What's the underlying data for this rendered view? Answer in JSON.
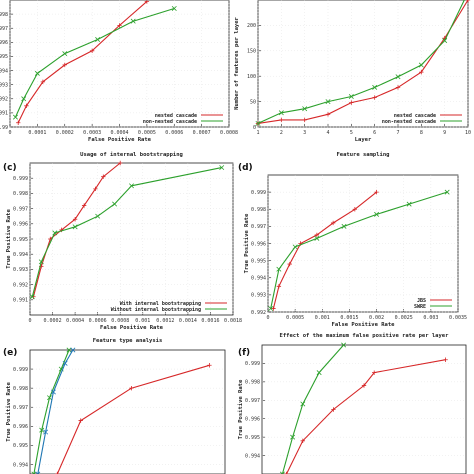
{
  "chart_data": [
    {
      "panel_label": "",
      "type": "line",
      "title": "",
      "xlabel": "False Positive Rate",
      "ylabel": "True Positive Rate",
      "xlim": [
        0,
        0.0008
      ],
      "ylim": [
        0.99,
        0.999
      ],
      "xticks": [
        "0",
        "0.0001",
        "0.0002",
        "0.0003",
        "0.0004",
        "0.0005",
        "0.0006",
        "0.0007",
        "0.0008"
      ],
      "yticks": [
        "0.99",
        "0.991",
        "0.992",
        "0.993",
        "0.994",
        "0.995",
        "0.996",
        "0.997",
        "0.998"
      ],
      "legend_position": "bottom-right",
      "series": [
        {
          "name": "nested cascade",
          "color": "#d62728",
          "marker": "+",
          "x": [
            3e-05,
            6e-05,
            0.00012,
            0.0002,
            0.0003,
            0.0004,
            0.0005
          ],
          "y": [
            0.9903,
            0.9915,
            0.9932,
            0.9944,
            0.9954,
            0.9972,
            0.9989
          ]
        },
        {
          "name": "non-nested cascade",
          "color": "#2ca02c",
          "marker": "x",
          "x": [
            2e-05,
            5e-05,
            0.0001,
            0.0002,
            0.00032,
            0.00045,
            0.0006
          ],
          "y": [
            0.9907,
            0.992,
            0.9938,
            0.9952,
            0.9962,
            0.9975,
            0.9984
          ]
        }
      ]
    },
    {
      "panel_label": "",
      "type": "line",
      "title": "",
      "xlabel": "Layer",
      "ylabel": "Number of features per layer",
      "xlim": [
        1,
        10
      ],
      "ylim": [
        0,
        250
      ],
      "xticks": [
        "1",
        "2",
        "3",
        "4",
        "5",
        "6",
        "7",
        "8",
        "9",
        "10"
      ],
      "yticks": [
        "0",
        "50",
        "100",
        "150",
        "200"
      ],
      "legend_position": "bottom-right",
      "series": [
        {
          "name": "nested cascade",
          "color": "#d62728",
          "marker": "+",
          "x": [
            1,
            2,
            3,
            4,
            5,
            6,
            7,
            8,
            9,
            10
          ],
          "y": [
            7,
            14,
            14,
            25,
            48,
            58,
            78,
            108,
            175,
            250
          ]
        },
        {
          "name": "non-nested cascade",
          "color": "#2ca02c",
          "marker": "x",
          "x": [
            1,
            2,
            3,
            4,
            5,
            6,
            7,
            8,
            9,
            10
          ],
          "y": [
            7,
            28,
            36,
            50,
            60,
            78,
            99,
            122,
            170,
            265
          ]
        }
      ]
    },
    {
      "panel_label": "(c)",
      "type": "line",
      "title": "Usage of internal bootstrapping",
      "xlabel": "False Positive Rate",
      "ylabel": "True Positive Rate",
      "xlim": [
        0,
        0.0018
      ],
      "ylim": [
        0.99,
        1.0
      ],
      "xticks": [
        "0",
        "0.0002",
        "0.0004",
        "0.0006",
        "0.0008",
        "0.001",
        "0.0012",
        "0.0014",
        "0.0016",
        "0.0018"
      ],
      "yticks": [
        "0.991",
        "0.992",
        "0.993",
        "0.994",
        "0.995",
        "0.996",
        "0.997",
        "0.998",
        "0.999"
      ],
      "legend_position": "bottom-right",
      "series": [
        {
          "name": "With internal bootstrapping",
          "color": "#d62728",
          "marker": "+",
          "x": [
            3e-05,
            0.0001,
            0.00018,
            0.00028,
            0.0004,
            0.00048,
            0.00058,
            0.00065,
            0.0008
          ],
          "y": [
            0.9912,
            0.9932,
            0.995,
            0.9956,
            0.9963,
            0.9972,
            0.9983,
            0.9991,
            1.0
          ]
        },
        {
          "name": "Without internal bootstrapping",
          "color": "#2ca02c",
          "marker": "x",
          "x": [
            2e-05,
            0.0001,
            0.00022,
            0.0004,
            0.0006,
            0.00075,
            0.0009,
            0.0017
          ],
          "y": [
            0.9912,
            0.9935,
            0.9954,
            0.9958,
            0.9965,
            0.9973,
            0.9985,
            0.9997
          ]
        }
      ]
    },
    {
      "panel_label": "(d)",
      "type": "line",
      "title": "Feature sampling",
      "xlabel": "False Positive Rate",
      "ylabel": "True Positive Rate",
      "xlim": [
        0,
        0.0035
      ],
      "ylim": [
        0.992,
        1.0
      ],
      "xticks": [
        "0",
        "0.0005",
        "0.001",
        "0.0015",
        "0.002",
        "0.0025",
        "0.003",
        "0.0035"
      ],
      "yticks": [
        "0.992",
        "0.993",
        "0.994",
        "0.995",
        "0.996",
        "0.997",
        "0.998",
        "0.999"
      ],
      "legend_position": "bottom-right",
      "series": [
        {
          "name": "JBS",
          "color": "#d62728",
          "marker": "+",
          "x": [
            0.0001,
            0.0002,
            0.0004,
            0.0006,
            0.0009,
            0.0012,
            0.0016,
            0.002
          ],
          "y": [
            0.9922,
            0.9935,
            0.9948,
            0.996,
            0.9965,
            0.9972,
            0.998,
            0.999
          ]
        },
        {
          "name": "SWRE",
          "color": "#2ca02c",
          "marker": "x",
          "x": [
            5e-05,
            0.0002,
            0.0005,
            0.0009,
            0.0014,
            0.002,
            0.0026,
            0.0033
          ],
          "y": [
            0.9922,
            0.9945,
            0.9958,
            0.9963,
            0.997,
            0.9977,
            0.9983,
            0.999
          ]
        }
      ]
    },
    {
      "panel_label": "(e)",
      "type": "line",
      "title": "Feature type analysis",
      "xlabel": "",
      "ylabel": "True Positive Rate",
      "xlim": [
        0,
        0.005
      ],
      "ylim": [
        0.9935,
        1.0
      ],
      "xticks": [],
      "yticks": [
        "0.994",
        "0.995",
        "0.996",
        "0.997",
        "0.998",
        "0.999"
      ],
      "legend_position": "",
      "series": [
        {
          "name": "",
          "color": "#d62728",
          "marker": "+",
          "x": [
            0.0007,
            0.0013,
            0.0026,
            0.0046
          ],
          "y": [
            0.9935,
            0.9963,
            0.998,
            0.9992
          ]
        },
        {
          "name": "",
          "color": "#2ca02c",
          "marker": "x",
          "x": [
            0.0001,
            0.0003,
            0.0005,
            0.0008,
            0.001
          ],
          "y": [
            0.9935,
            0.9958,
            0.9975,
            0.999,
            1.0
          ]
        },
        {
          "name": "",
          "color": "#1f77b4",
          "marker": "x",
          "x": [
            0.0002,
            0.0004,
            0.0006,
            0.0009,
            0.0011
          ],
          "y": [
            0.9935,
            0.9957,
            0.9978,
            0.9993,
            1.0
          ]
        }
      ]
    },
    {
      "panel_label": "(f)",
      "type": "line",
      "title": "Effect of the maximum false positive rate per layer",
      "xlabel": "",
      "ylabel": "True Positive Rate",
      "xlim": [
        0,
        0.001
      ],
      "ylim": [
        0.993,
        1.0
      ],
      "xticks": [],
      "yticks": [
        "0.994",
        "0.995",
        "0.996",
        "0.997",
        "0.998",
        "0.999"
      ],
      "legend_position": "",
      "series": [
        {
          "name": "",
          "color": "#d62728",
          "marker": "+",
          "x": [
            0.00012,
            0.0002,
            0.00035,
            0.0005,
            0.00055,
            0.0009
          ],
          "y": [
            0.993,
            0.9948,
            0.9965,
            0.9978,
            0.9985,
            0.9992
          ]
        },
        {
          "name": "",
          "color": "#2ca02c",
          "marker": "x",
          "x": [
            0.0001,
            0.00015,
            0.0002,
            0.00028,
            0.0004
          ],
          "y": [
            0.993,
            0.995,
            0.9968,
            0.9985,
            1.0
          ]
        }
      ]
    }
  ]
}
